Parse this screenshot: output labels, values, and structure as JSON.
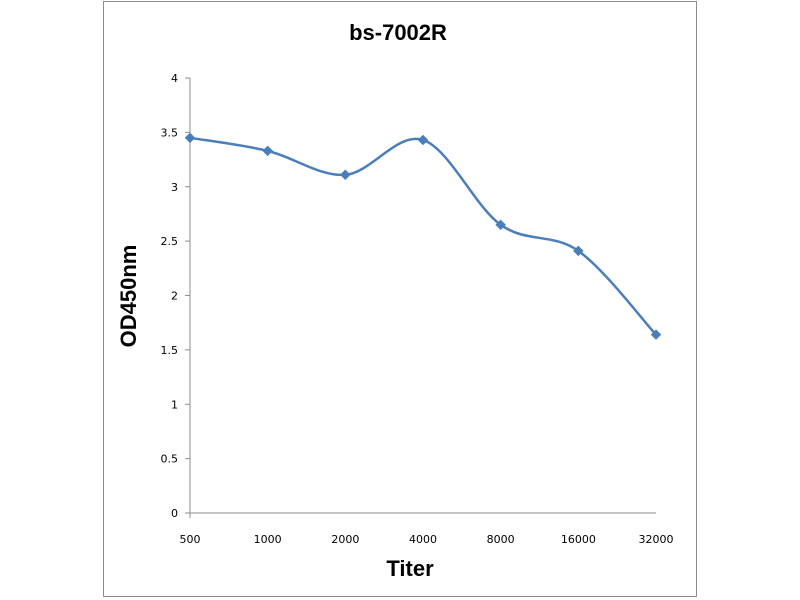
{
  "chart_data": {
    "type": "line",
    "title": "bs-7002R",
    "xlabel": "Titer",
    "ylabel": "OD450nm",
    "categories": [
      "500",
      "1000",
      "2000",
      "4000",
      "8000",
      "16000",
      "32000"
    ],
    "series": [
      {
        "values": [
          3.45,
          3.33,
          3.11,
          3.43,
          2.65,
          2.41,
          1.64
        ]
      }
    ],
    "yticks": [
      "0",
      "0.5",
      "1",
      "1.5",
      "2",
      "2.5",
      "3",
      "3.5",
      "4"
    ],
    "ylim": [
      0,
      4
    ],
    "grid": false,
    "legend": "none",
    "smooth": true,
    "line_color": "#4a7ebb"
  }
}
